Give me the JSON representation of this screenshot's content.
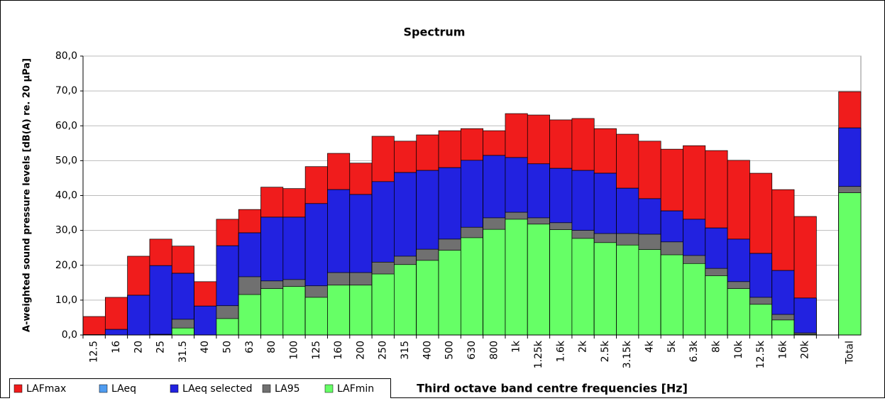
{
  "chart_data": {
    "type": "bar",
    "overlap": true,
    "title": "Spectrum",
    "y_label": "A-weighted sound pressure levels [dB(A) re. 20 µPa]",
    "x_label": "Third octave band centre frequencies [Hz]",
    "categories": [
      "12.5",
      "16",
      "20",
      "25",
      "31.5",
      "40",
      "50",
      "63",
      "80",
      "100",
      "125",
      "160",
      "200",
      "250",
      "315",
      "400",
      "500",
      "630",
      "800",
      "1k",
      "1.25k",
      "1.6k",
      "2k",
      "2.5k",
      "3.15k",
      "4k",
      "5k",
      "6.3k",
      "8k",
      "10k",
      "12.5k",
      "16k",
      "20k",
      null,
      "Total"
    ],
    "series": [
      {
        "name": "LAFmax",
        "color": "#f01c1c",
        "values": [
          5.3,
          10.8,
          22.6,
          27.5,
          25.5,
          15.3,
          33.2,
          36.0,
          42.4,
          42.0,
          48.3,
          52.1,
          49.3,
          57.0,
          55.6,
          57.4,
          58.6,
          59.2,
          58.6,
          63.5,
          63.1,
          61.7,
          62.1,
          59.2,
          57.6,
          55.6,
          53.3,
          54.3,
          52.9,
          50.1,
          46.4,
          41.7,
          34.0,
          null,
          69.8
        ]
      },
      {
        "name": "LAeq",
        "color": "#4f9cf0",
        "values": [
          0.1,
          1.6,
          11.4,
          19.9,
          17.7,
          8.3,
          25.6,
          29.3,
          33.8,
          33.8,
          37.7,
          41.7,
          40.3,
          44.0,
          46.6,
          47.2,
          48.0,
          50.1,
          51.5,
          50.9,
          49.1,
          47.8,
          47.2,
          46.4,
          42.1,
          39.1,
          35.6,
          33.2,
          30.7,
          27.5,
          23.4,
          18.5,
          10.6,
          null,
          59.4
        ]
      },
      {
        "name": "LAeq selected",
        "color": "#2222e0",
        "values": [
          0.1,
          1.6,
          11.4,
          19.9,
          17.7,
          8.3,
          25.6,
          29.3,
          33.8,
          33.8,
          37.7,
          41.7,
          40.3,
          44.0,
          46.6,
          47.2,
          48.0,
          50.1,
          51.5,
          50.9,
          49.1,
          47.8,
          47.2,
          46.4,
          42.1,
          39.1,
          35.6,
          33.2,
          30.7,
          27.5,
          23.4,
          18.5,
          10.6,
          null,
          59.4
        ]
      },
      {
        "name": "LA95",
        "color": "#707070",
        "values": [
          0,
          0,
          0,
          0.2,
          4.5,
          0,
          8.4,
          16.7,
          15.5,
          15.9,
          14.1,
          17.9,
          17.9,
          20.9,
          22.6,
          24.6,
          27.5,
          30.9,
          33.6,
          35.2,
          33.6,
          32.2,
          30.0,
          29.1,
          29.1,
          28.9,
          26.7,
          22.8,
          19.1,
          15.3,
          10.8,
          5.9,
          0.6,
          null,
          42.6
        ]
      },
      {
        "name": "LAFmin",
        "color": "#66ff66",
        "values": [
          0,
          0,
          0,
          0.1,
          2.0,
          0,
          4.7,
          11.6,
          13.3,
          13.9,
          10.8,
          14.3,
          14.3,
          17.5,
          20.2,
          21.4,
          24.3,
          27.9,
          30.3,
          33.2,
          31.8,
          30.2,
          27.7,
          26.5,
          25.8,
          24.5,
          23.0,
          20.5,
          17.0,
          13.3,
          8.8,
          4.3,
          0.2,
          null,
          40.8
        ]
      }
    ],
    "ylim": [
      0,
      80
    ],
    "yticks": [
      {
        "value": 0,
        "label": "0,0"
      },
      {
        "value": 10,
        "label": "10,0"
      },
      {
        "value": 20,
        "label": "20,0"
      },
      {
        "value": 30,
        "label": "30,0"
      },
      {
        "value": 40,
        "label": "40,0"
      },
      {
        "value": 50,
        "label": "50,0"
      },
      {
        "value": 60,
        "label": "60,0"
      },
      {
        "value": 70,
        "label": "70,0"
      },
      {
        "value": 80,
        "label": "80,0"
      }
    ],
    "grid": true,
    "legend": "bottom-left"
  }
}
